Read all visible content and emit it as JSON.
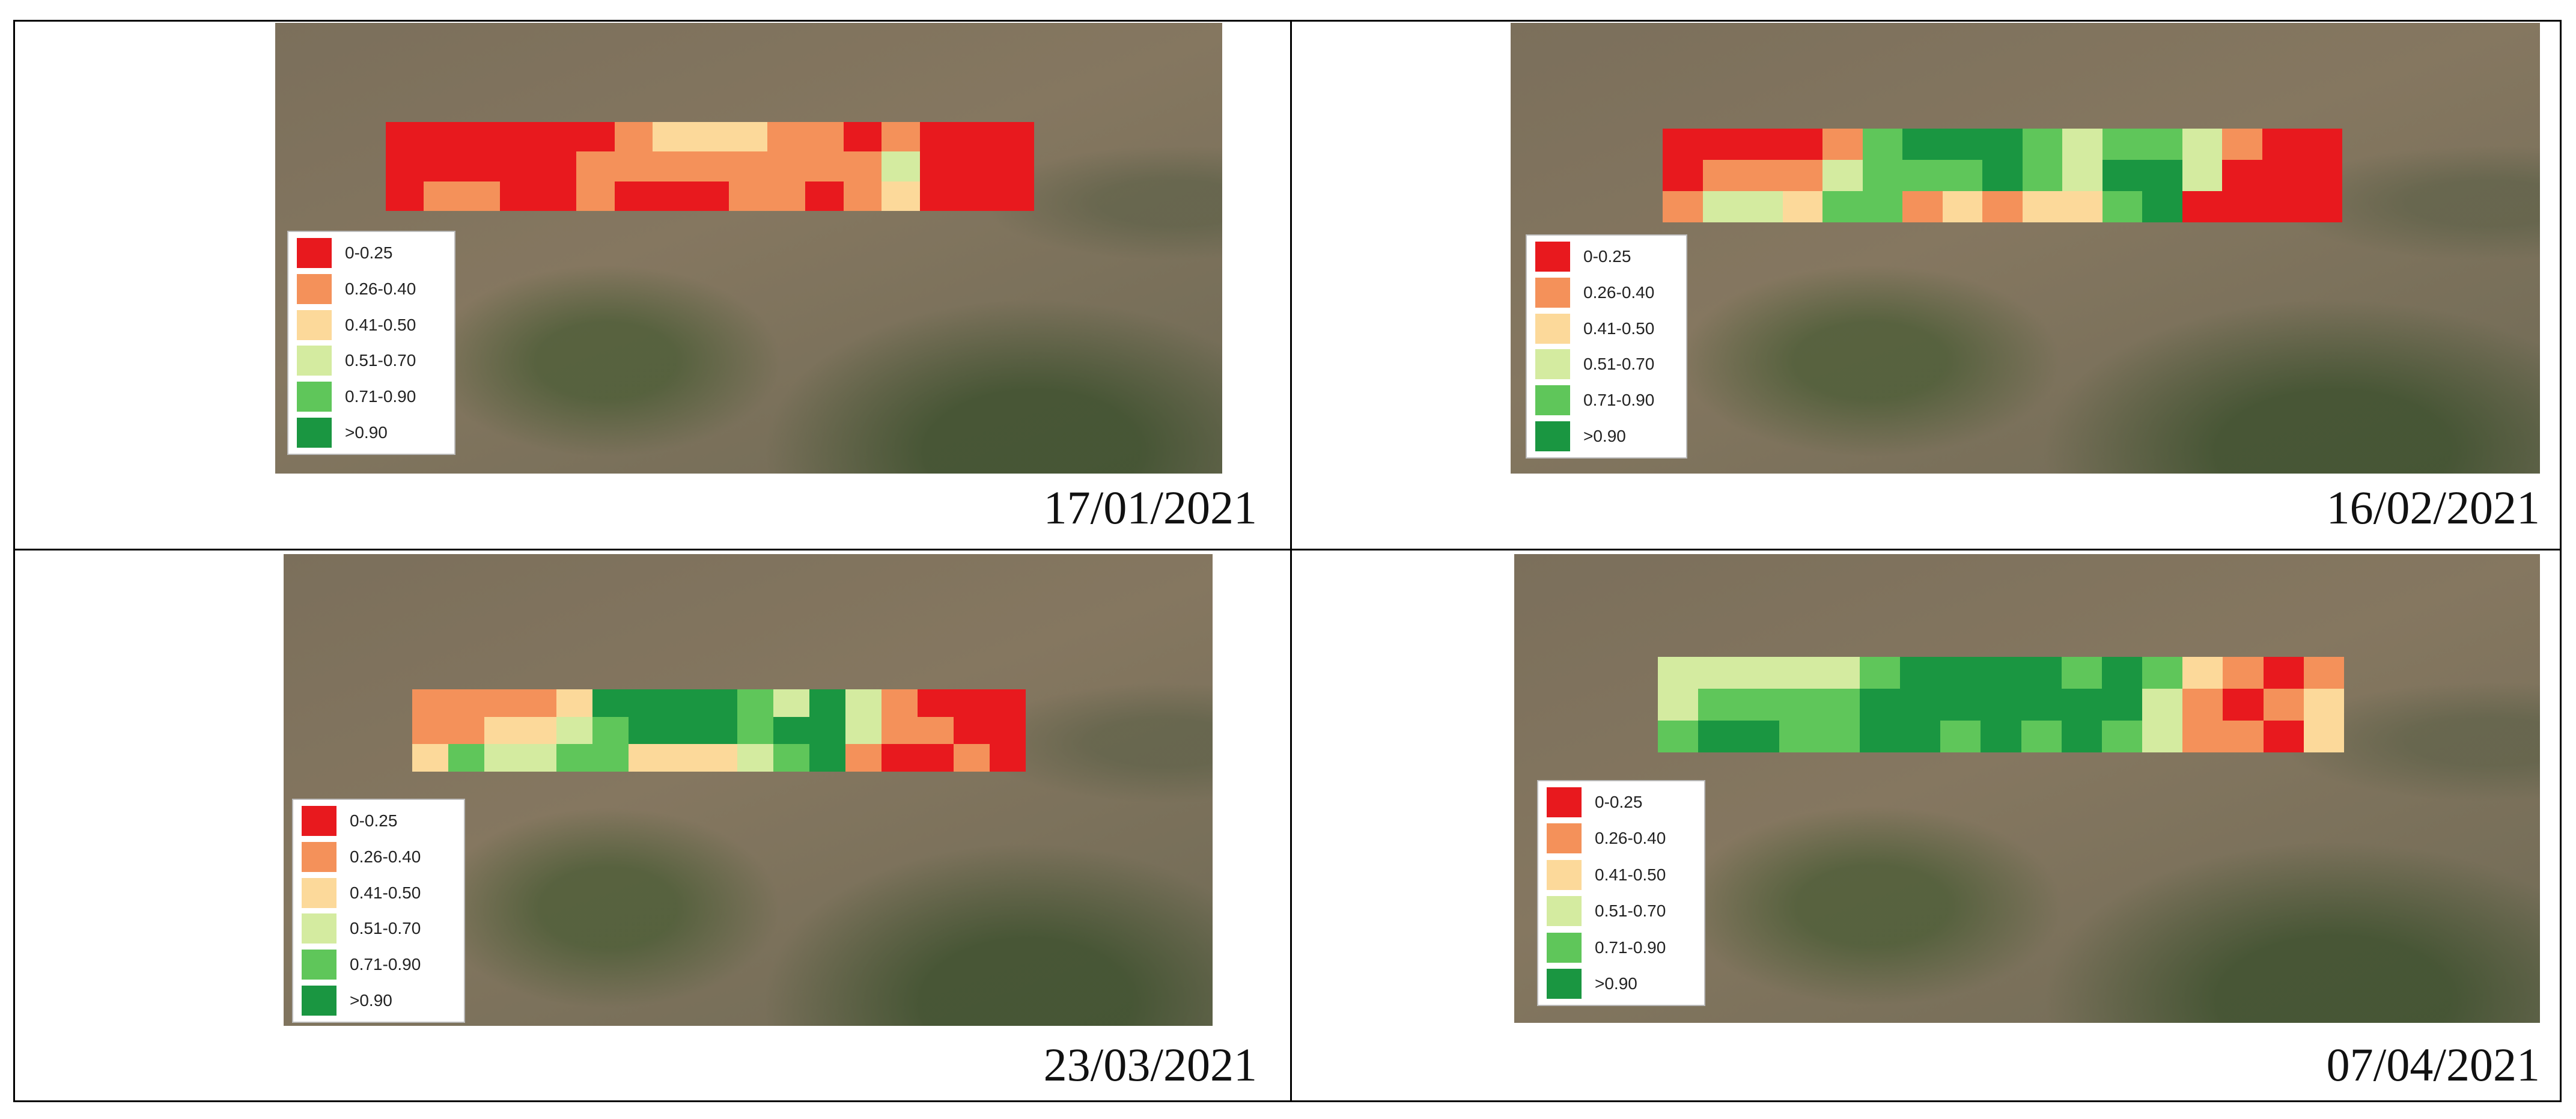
{
  "legend": [
    {
      "label": "0-0.25",
      "color": "#e8191e"
    },
    {
      "label": "0.26-0.40",
      "color": "#f4915a"
    },
    {
      "label": "0.41-0.50",
      "color": "#fcd99a"
    },
    {
      "label": "0.51-0.70",
      "color": "#d4eba0"
    },
    {
      "label": "0.71-0.90",
      "color": "#5fc65a"
    },
    {
      "label": ">0.90",
      "color": "#1a9641"
    }
  ],
  "panels": [
    {
      "date": "17/01/2021",
      "cells": [
        [
          0,
          0,
          0,
          0,
          0,
          0,
          1,
          2,
          2,
          2,
          1,
          1,
          0,
          1,
          0,
          0,
          0
        ],
        [
          0,
          0,
          0,
          0,
          0,
          1,
          1,
          1,
          1,
          1,
          1,
          1,
          1,
          3,
          0,
          0,
          0
        ],
        [
          0,
          1,
          1,
          0,
          0,
          1,
          0,
          0,
          0,
          1,
          1,
          0,
          1,
          2,
          0,
          0,
          0
        ]
      ]
    },
    {
      "date": "16/02/2021",
      "cells": [
        [
          0,
          0,
          0,
          0,
          1,
          4,
          5,
          5,
          5,
          4,
          3,
          4,
          4,
          3,
          1,
          0,
          0
        ],
        [
          0,
          1,
          1,
          1,
          3,
          4,
          4,
          4,
          5,
          4,
          3,
          5,
          5,
          3,
          0,
          0,
          0
        ],
        [
          1,
          3,
          3,
          2,
          4,
          4,
          1,
          2,
          1,
          2,
          2,
          4,
          5,
          0,
          0,
          0,
          0
        ]
      ]
    },
    {
      "date": "23/03/2021",
      "cells": [
        [
          1,
          1,
          1,
          1,
          2,
          5,
          5,
          5,
          5,
          4,
          3,
          5,
          3,
          1,
          0,
          0,
          0
        ],
        [
          1,
          1,
          2,
          2,
          3,
          4,
          5,
          5,
          5,
          4,
          5,
          5,
          3,
          1,
          1,
          0,
          0
        ],
        [
          2,
          4,
          3,
          3,
          4,
          4,
          2,
          2,
          2,
          3,
          4,
          5,
          1,
          0,
          0,
          1,
          0
        ]
      ]
    },
    {
      "date": "07/04/2021",
      "cells": [
        [
          3,
          3,
          3,
          3,
          3,
          4,
          5,
          5,
          5,
          5,
          4,
          5,
          4,
          2,
          1,
          0,
          1
        ],
        [
          3,
          4,
          4,
          4,
          4,
          5,
          5,
          5,
          5,
          5,
          5,
          5,
          3,
          1,
          0,
          1,
          2
        ],
        [
          4,
          5,
          5,
          4,
          4,
          5,
          5,
          4,
          5,
          4,
          5,
          4,
          3,
          1,
          1,
          0,
          2
        ]
      ]
    }
  ]
}
